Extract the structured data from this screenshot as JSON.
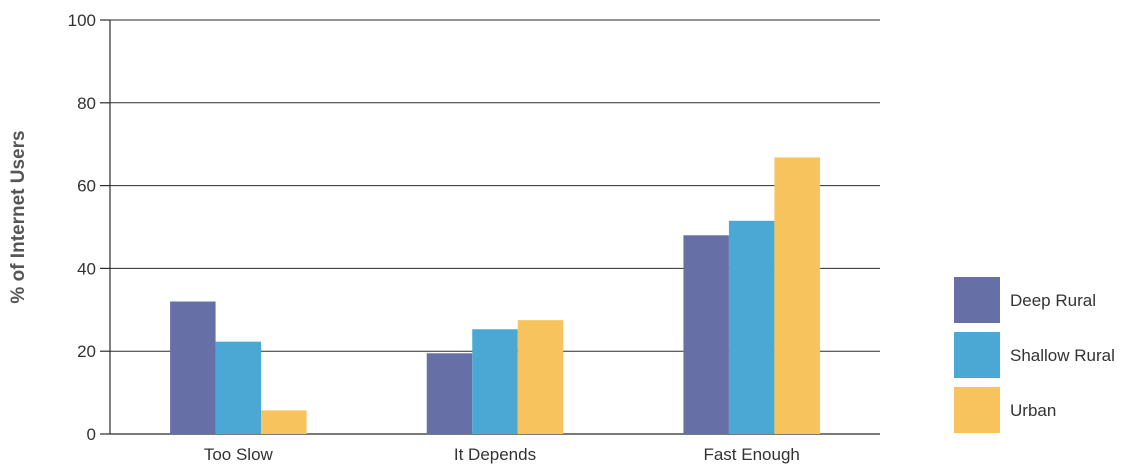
{
  "chart_data": {
    "type": "bar",
    "title": "",
    "xlabel": "",
    "ylabel": "% of Internet Users",
    "ylim": [
      0,
      100
    ],
    "yticks": [
      0,
      20,
      40,
      60,
      80,
      100
    ],
    "grid": true,
    "legend_position": "right",
    "categories": [
      "Too Slow",
      "It Depends",
      "Fast Enough"
    ],
    "series": [
      {
        "name": "Deep Rural",
        "color": "#6670a6",
        "values": [
          32,
          19.5,
          48
        ]
      },
      {
        "name": "Shallow Rural",
        "color": "#4ba8d5",
        "values": [
          22.3,
          25.3,
          51.5
        ]
      },
      {
        "name": "Urban",
        "color": "#f6c35c",
        "values": [
          5.7,
          27.5,
          66.8
        ]
      }
    ]
  }
}
